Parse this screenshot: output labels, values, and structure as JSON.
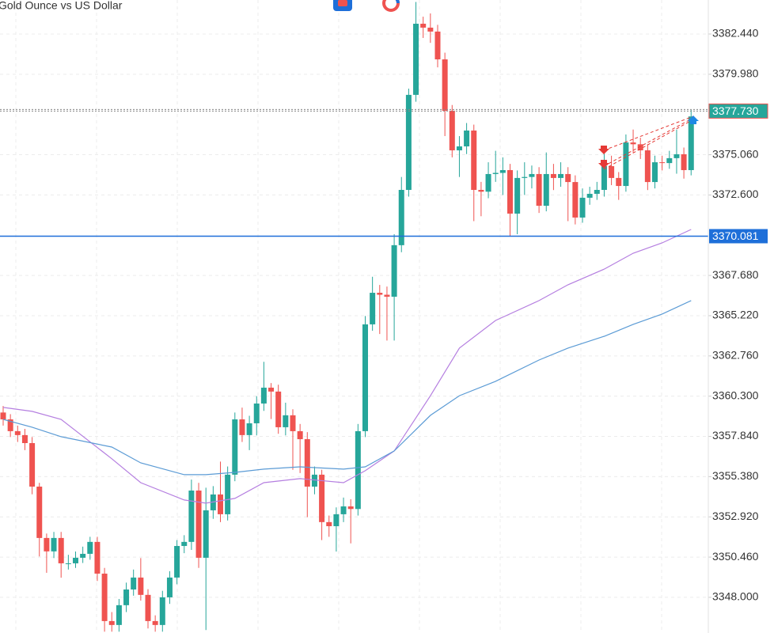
{
  "chart_data": {
    "type": "candlestick",
    "title": "Gold Ounce vs US Dollar",
    "up_color": "#26a69a",
    "down_color": "#ef5350",
    "ylim": [
      3345.82,
      3384.52
    ],
    "yticks": [
      {
        "value": 3348.0,
        "label": "3348.000"
      },
      {
        "value": 3350.46,
        "label": "3350.460"
      },
      {
        "value": 3352.92,
        "label": "3352.920"
      },
      {
        "value": 3355.38,
        "label": "3355.380"
      },
      {
        "value": 3357.84,
        "label": "3357.840"
      },
      {
        "value": 3360.3,
        "label": "3360.300"
      },
      {
        "value": 3362.76,
        "label": "3362.760"
      },
      {
        "value": 3365.22,
        "label": "3365.220"
      },
      {
        "value": 3367.68,
        "label": "3367.680"
      },
      {
        "value": 3372.6,
        "label": "3372.600"
      },
      {
        "value": 3375.06,
        "label": "3375.060"
      },
      {
        "value": 3379.98,
        "label": "3379.980"
      },
      {
        "value": 3382.44,
        "label": "3382.440"
      }
    ],
    "grid": true,
    "open": [
      3359.3,
      3358.88,
      3358.16,
      3357.92,
      3357.43,
      3354.77,
      3351.63,
      3350.81,
      3351.63,
      3350.08,
      3350.08,
      3350.42,
      3350.66,
      3351.39,
      3349.45,
      3346.55,
      3346.31,
      3347.52,
      3348.48,
      3349.21,
      3348.15,
      3346.55,
      3346.31,
      3348.0,
      3349.21,
      3351.14,
      3351.39,
      3354.53,
      3350.42,
      3353.32,
      3354.29,
      3353.08,
      3355.5,
      3358.88,
      3357.92,
      3358.64,
      3359.85,
      3360.82,
      3360.58,
      3358.4,
      3359.13,
      3358.16,
      3357.67,
      3354.77,
      3355.5,
      3352.6,
      3352.35,
      3353.08,
      3353.56,
      3353.4,
      3358.16,
      3364.69,
      3366.62,
      3366.5,
      3366.38,
      3369.53,
      3372.91,
      3378.72,
      3383.07,
      3382.83,
      3382.59,
      3380.89,
      3377.75,
      3375.33,
      3375.57,
      3376.54,
      3372.91,
      3372.8,
      3373.88,
      3373.95,
      3374.12,
      3371.46,
      3373.64,
      3373.7,
      3373.88,
      3371.94,
      3373.88,
      3373.64,
      3373.88,
      3373.39,
      3371.22,
      3372.43,
      3372.67,
      3372.91,
      3374.36,
      3373.64,
      3373.15,
      3375.81,
      3375.7,
      3375.33,
      3373.39,
      3374.6,
      3374.55,
      3374.85,
      3375.09,
      3374.12
    ],
    "high": [
      3359.7,
      3359.2,
      3358.5,
      3358.3,
      3357.8,
      3355.0,
      3351.9,
      3352.0,
      3352.0,
      3350.6,
      3350.8,
      3351.1,
      3351.7,
      3351.7,
      3349.8,
      3347.1,
      3347.9,
      3348.9,
      3349.7,
      3350.4,
      3348.5,
      3346.9,
      3348.4,
      3349.6,
      3351.5,
      3351.8,
      3355.2,
      3355.0,
      3354.7,
      3354.8,
      3356.3,
      3356.0,
      3359.3,
      3359.6,
      3359.1,
      3360.3,
      3362.4,
      3361.1,
      3361.0,
      3359.9,
      3359.5,
      3358.6,
      3358.1,
      3356.0,
      3355.8,
      3353.0,
      3353.5,
      3354.1,
      3354.0,
      3358.6,
      3365.2,
      3367.6,
      3367.1,
      3367.0,
      3370.2,
      3373.7,
      3379.1,
      3384.4,
      3383.5,
      3383.7,
      3383.0,
      3381.3,
      3378.1,
      3376.2,
      3377.0,
      3376.9,
      3373.4,
      3374.6,
      3375.3,
      3374.9,
      3374.5,
      3374.1,
      3374.6,
      3374.4,
      3374.3,
      3375.2,
      3374.5,
      3374.6,
      3374.3,
      3373.8,
      3373.0,
      3373.1,
      3373.4,
      3375.5,
      3375.0,
      3374.0,
      3376.3,
      3376.6,
      3376.1,
      3375.7,
      3375.0,
      3375.0,
      3375.3,
      3376.6,
      3375.5,
      3377.8
    ],
    "low": [
      3358.5,
      3357.8,
      3357.5,
      3357.0,
      3354.3,
      3350.5,
      3349.5,
      3350.4,
      3349.2,
      3349.7,
      3349.8,
      3350.1,
      3350.3,
      3349.0,
      3345.9,
      3345.9,
      3345.9,
      3347.1,
      3348.1,
      3347.8,
      3346.1,
      3345.9,
      3345.9,
      3347.6,
      3348.8,
      3350.7,
      3350.9,
      3349.8,
      3346.0,
      3352.8,
      3352.6,
      3352.7,
      3355.1,
      3357.5,
      3357.0,
      3357.9,
      3359.4,
      3358.9,
      3358.0,
      3357.9,
      3355.8,
      3355.6,
      3352.9,
      3354.3,
      3351.5,
      3351.7,
      3350.8,
      3352.6,
      3351.3,
      3353.0,
      3357.8,
      3364.3,
      3364.1,
      3363.7,
      3363.7,
      3369.1,
      3372.5,
      3378.3,
      3382.2,
      3381.9,
      3380.4,
      3376.2,
      3374.9,
      3373.7,
      3375.1,
      3371.0,
      3371.3,
      3372.4,
      3373.4,
      3372.6,
      3370.1,
      3370.2,
      3372.6,
      3373.0,
      3371.5,
      3371.6,
      3372.9,
      3373.1,
      3371.0,
      3370.8,
      3370.9,
      3372.0,
      3372.3,
      3372.5,
      3373.2,
      3372.3,
      3372.8,
      3375.2,
      3374.8,
      3372.9,
      3373.0,
      3374.1,
      3374.2,
      3373.9,
      3373.6,
      3373.8
    ],
    "close": [
      3358.88,
      3358.16,
      3357.92,
      3357.43,
      3354.77,
      3351.63,
      3350.81,
      3351.63,
      3350.08,
      3350.08,
      3350.42,
      3350.66,
      3351.39,
      3349.45,
      3346.55,
      3346.31,
      3347.52,
      3348.48,
      3349.21,
      3348.15,
      3346.55,
      3346.31,
      3348.0,
      3349.21,
      3351.14,
      3351.39,
      3354.53,
      3350.42,
      3353.32,
      3354.29,
      3353.08,
      3355.5,
      3358.88,
      3357.92,
      3358.64,
      3359.85,
      3360.82,
      3360.58,
      3358.4,
      3359.13,
      3358.16,
      3357.67,
      3354.77,
      3355.5,
      3352.6,
      3352.35,
      3353.08,
      3353.56,
      3353.4,
      3358.16,
      3364.69,
      3366.62,
      3366.5,
      3366.38,
      3369.53,
      3372.91,
      3378.72,
      3383.07,
      3382.83,
      3382.59,
      3380.89,
      3377.75,
      3375.33,
      3375.57,
      3376.54,
      3372.91,
      3372.8,
      3373.88,
      3373.95,
      3374.12,
      3371.46,
      3373.64,
      3373.7,
      3373.88,
      3371.94,
      3373.88,
      3373.64,
      3373.88,
      3373.39,
      3371.22,
      3372.43,
      3372.67,
      3372.91,
      3374.36,
      3373.64,
      3373.15,
      3375.81,
      3375.7,
      3375.33,
      3373.39,
      3374.6,
      3374.55,
      3374.85,
      3375.09,
      3374.12,
      3377.4
    ],
    "series": [
      {
        "color": "#b57fe0",
        "x": [
          0,
          4,
          8,
          15,
          19,
          25,
          28,
          32,
          36,
          41,
          47,
          50,
          54,
          59,
          63,
          68,
          74,
          78,
          83,
          87,
          91,
          95
        ],
        "values": [
          3359.61,
          3359.37,
          3358.88,
          3356.47,
          3355.01,
          3353.95,
          3353.76,
          3354.05,
          3355.01,
          3355.26,
          3355.01,
          3355.74,
          3356.95,
          3360.33,
          3363.24,
          3364.93,
          3366.14,
          3367.11,
          3368.07,
          3369.04,
          3369.67,
          3370.49
        ]
      },
      {
        "color": "#5b9bd5",
        "x": [
          0,
          4,
          8,
          15,
          19,
          25,
          28,
          32,
          36,
          41,
          47,
          50,
          54,
          59,
          63,
          68,
          74,
          78,
          83,
          87,
          91,
          95
        ],
        "values": [
          3358.88,
          3358.4,
          3357.82,
          3357.19,
          3356.22,
          3355.5,
          3355.5,
          3355.64,
          3355.84,
          3355.98,
          3355.84,
          3355.98,
          3356.95,
          3359.13,
          3360.33,
          3361.21,
          3362.51,
          3363.24,
          3363.96,
          3364.69,
          3365.32,
          3366.14
        ]
      }
    ],
    "price_lines": [
      {
        "value": 3377.73,
        "label": "3377.730",
        "color": "#888888",
        "label_color": "#26a69a",
        "style": "dotted"
      },
      {
        "value": 3370.081,
        "color": "#1e6fd9",
        "label_color": "#1e6fd9",
        "style": "solid"
      }
    ]
  }
}
